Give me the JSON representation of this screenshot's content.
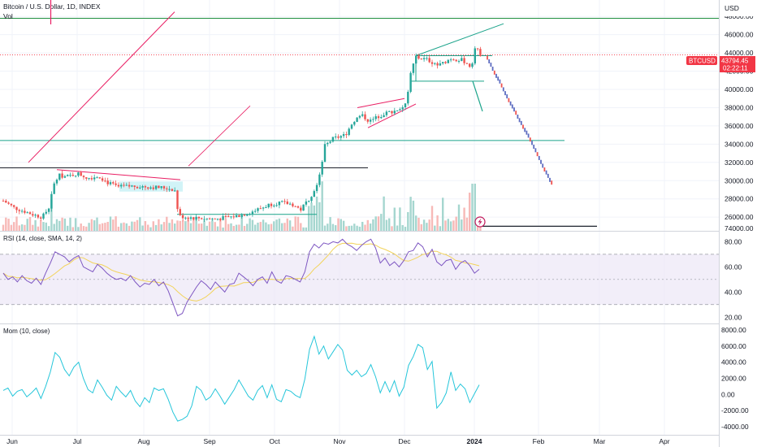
{
  "header": {
    "title": "Bitcoin / U.S. Dollar, 1D, INDEX",
    "vol_label": "Vol",
    "currency": "USD"
  },
  "price_badge": {
    "symbol": "BTCUSD",
    "price": "43794.45",
    "countdown": "02:22:11"
  },
  "colors": {
    "up": "#26a69a",
    "down": "#ef5350",
    "green_line": "#1e8f3e",
    "teal_line": "#1aa38a",
    "pink_line": "#e91e63",
    "rsi_line": "#7e57c2",
    "rsi_sma": "#f2d35b",
    "rsi_band": "#ede7f6",
    "mom_line": "#26c6da",
    "badge": "#f23645"
  },
  "chart_data": [
    {
      "type": "candlestick",
      "title": "Bitcoin / U.S. Dollar, 1D, INDEX",
      "ylabel": "USD",
      "ylim": [
        24500,
        49800
      ],
      "y_ticks": [
        26000,
        28000,
        30000,
        32000,
        34000,
        36000,
        38000,
        40000,
        42000,
        44000,
        46000,
        48000
      ],
      "x_ticks": [
        "Jun",
        "Jul",
        "Aug",
        "Sep",
        "Oct",
        "Nov",
        "Dec",
        "2024",
        "Feb",
        "Mar",
        "Apr"
      ],
      "last_price": 43794.45,
      "volume_label": "74000.00",
      "levels": [
        {
          "value": 47800,
          "color": "green"
        },
        {
          "value": 34400,
          "color": "teal"
        },
        {
          "value": 31400,
          "color": "black"
        },
        {
          "value": 25000,
          "color": "black"
        }
      ],
      "volume_visible": true
    },
    {
      "type": "line",
      "title": "RSI (14, close, SMA, 14, 2)",
      "ylim": [
        15,
        88
      ],
      "y_ticks": [
        20,
        40,
        60,
        80
      ],
      "bands": [
        30,
        70
      ],
      "series": [
        {
          "values": [
            55,
            50,
            52,
            48,
            53,
            49,
            47,
            51,
            46,
            55,
            63,
            72,
            70,
            68,
            64,
            67,
            69,
            60,
            58,
            56,
            62,
            59,
            55,
            52,
            50,
            51,
            49,
            53,
            48,
            44,
            47,
            46,
            50,
            45,
            48,
            41,
            31,
            21,
            23,
            32,
            38,
            44,
            49,
            46,
            42,
            48,
            44,
            40,
            46,
            47,
            55,
            52,
            49,
            45,
            50,
            52,
            47,
            56,
            49,
            47,
            53,
            52,
            50,
            48,
            56,
            72,
            78,
            75,
            79,
            78,
            80,
            79,
            82,
            78,
            76,
            73,
            77,
            80,
            82,
            75,
            63,
            67,
            61,
            64,
            60,
            65,
            72,
            73,
            79,
            76,
            68,
            74,
            64,
            61,
            65,
            66,
            58,
            63,
            65,
            61,
            55,
            58
          ]
        }
      ]
    },
    {
      "type": "line",
      "title": "Mom (10, close)",
      "ylim": [
        -5000,
        8700
      ],
      "y_ticks": [
        -4000,
        -2000,
        0,
        2000,
        4000,
        6000,
        8000
      ],
      "series": [
        {
          "values": [
            500,
            800,
            -200,
            400,
            600,
            -300,
            200,
            800,
            -500,
            1000,
            2800,
            5200,
            4600,
            3100,
            2300,
            3400,
            4000,
            2000,
            600,
            200,
            1800,
            900,
            -100,
            -700,
            1000,
            300,
            -300,
            500,
            -800,
            -1500,
            -400,
            -1000,
            800,
            500,
            700,
            -600,
            -2200,
            -3300,
            -3100,
            -2700,
            -1400,
            1000,
            500,
            -700,
            -300,
            700,
            -200,
            -1200,
            -300,
            600,
            1800,
            800,
            -200,
            -700,
            500,
            1100,
            -400,
            1200,
            -600,
            -900,
            600,
            400,
            -100,
            -400,
            1900,
            5600,
            7200,
            5000,
            6000,
            4400,
            5300,
            6200,
            5500,
            3000,
            2400,
            3000,
            2200,
            2600,
            3700,
            2200,
            200,
            1600,
            300,
            1700,
            -200,
            900,
            3600,
            4700,
            6200,
            5800,
            3100,
            4100,
            -1700,
            -1000,
            200,
            2800,
            500,
            1300,
            700,
            -1000,
            100,
            1200
          ]
        }
      ]
    }
  ],
  "drawings": {
    "count": 16
  }
}
